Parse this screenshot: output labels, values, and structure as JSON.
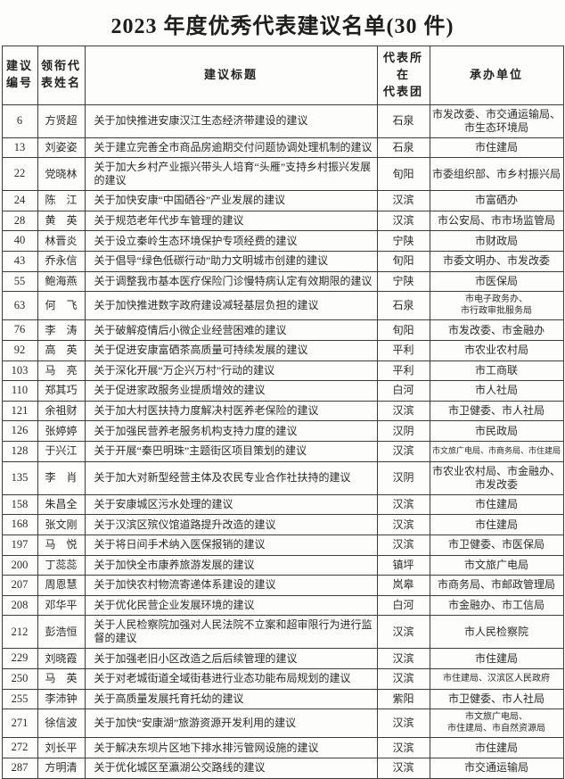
{
  "page": {
    "title": "2023 年度优秀代表建议名单(30 件)"
  },
  "table": {
    "headers": [
      "建议\n编号",
      "领衔代\n表姓名",
      "建议标题",
      "代表所在\n代表团",
      "承办单位"
    ],
    "rows": [
      {
        "no": "6",
        "name": "方贤超",
        "title": "关于加快推进安康汉江生态经济带建设的建议",
        "delegation": "石泉",
        "unit": "市发改委、市交通运输局、\n市生态环境局"
      },
      {
        "no": "13",
        "name": "刘姿姿",
        "title": "关于建立完善全市商品房逾期交付问题协调处理机制的建议",
        "delegation": "石泉",
        "unit": "市住建局"
      },
      {
        "no": "22",
        "name": "党晓林",
        "title": "关于加大乡村产业振兴带头人培育“头雁”支持乡村振兴发展的建议",
        "delegation": "旬阳",
        "unit": "市委组织部、市乡村振兴局"
      },
      {
        "no": "24",
        "name": "陈　江",
        "title": "关于加快安康“中国硒谷”产业发展的建议",
        "delegation": "汉滨",
        "unit": "市富硒办"
      },
      {
        "no": "28",
        "name": "黄　英",
        "title": "关于规范老年代步车管理的建议",
        "delegation": "汉滨",
        "unit": "市公安局、市市场监管局"
      },
      {
        "no": "40",
        "name": "林晋炎",
        "title": "关于设立秦岭生态环境保护专项经费的建议",
        "delegation": "宁陕",
        "unit": "市财政局"
      },
      {
        "no": "43",
        "name": "乔永信",
        "title": "关于倡导“绿色低碳行动”助力文明城市创建的建议",
        "delegation": "旬阳",
        "unit": "市委文明办、市发改委"
      },
      {
        "no": "55",
        "name": "鲍海燕",
        "title": "关于调整我市基本医疗保险门诊慢特病认定有效期限的建议",
        "delegation": "宁陕",
        "unit": "市医保局"
      },
      {
        "no": "63",
        "name": "何　飞",
        "title": "关于加快推进数字政府建设减轻基层负担的建议",
        "delegation": "石泉",
        "unit": "市电子政务办、\n市行政审批服务局",
        "unit_size": "small"
      },
      {
        "no": "76",
        "name": "李　涛",
        "title": "关于破解疫情后小微企业经营困难的建议",
        "delegation": "旬阳",
        "unit": "市发改委、市金融办"
      },
      {
        "no": "92",
        "name": "高　英",
        "title": "关于促进安康富硒茶高质量可持续发展的建议",
        "delegation": "平利",
        "unit": "市农业农村局"
      },
      {
        "no": "103",
        "name": "马　亮",
        "title": "关于深化开展“万企兴万村”行动的建议",
        "delegation": "平利",
        "unit": "市工商联"
      },
      {
        "no": "110",
        "name": "郑其巧",
        "title": "关于促进家政服务业提质增效的建议",
        "delegation": "白河",
        "unit": "市人社局"
      },
      {
        "no": "121",
        "name": "余祖财",
        "title": "关于加大村医扶持力度解决村医养老保险的建议",
        "delegation": "汉滨",
        "unit": "市卫健委、市人社局"
      },
      {
        "no": "126",
        "name": "张婷婷",
        "title": "关于加强民营养老服务机构支持力度的建议",
        "delegation": "汉阴",
        "unit": "市民政局"
      },
      {
        "no": "128",
        "name": "于兴江",
        "title": "关于开展“秦巴明珠”主题街区项目策划的建议",
        "delegation": "汉滨",
        "unit": "市文旅广电局、市商务局、市住建局",
        "unit_size": "xsmall"
      },
      {
        "no": "135",
        "name": "李　肖",
        "title": "关于加大对新型经营主体及农民专业合作社扶持的建议",
        "delegation": "汉阴",
        "unit": "市农业农村局、市金融办、\n市发改委"
      },
      {
        "no": "158",
        "name": "朱昌全",
        "title": "关于安康城区污水处理的建议",
        "delegation": "汉滨",
        "unit": "市住建局"
      },
      {
        "no": "168",
        "name": "张文刚",
        "title": "关于汉滨区殡仪馆道路提升改造的建议",
        "delegation": "汉滨",
        "unit": "市住建局"
      },
      {
        "no": "197",
        "name": "马　悦",
        "title": "关于将日间手术纳入医保报销的建议",
        "delegation": "汉滨",
        "unit": "市卫健委、市医保局"
      },
      {
        "no": "200",
        "name": "丁蕊蕊",
        "title": "关于加快全市康养旅游发展的建议",
        "delegation": "镇坪",
        "unit": "市文旅广电局"
      },
      {
        "no": "207",
        "name": "周恩慧",
        "title": "关于加快农村物流寄递体系建设的建议",
        "delegation": "岚皋",
        "unit": "市商务局、市邮政管理局"
      },
      {
        "no": "208",
        "name": "邓华平",
        "title": "关于优化民营企业发展环境的建议",
        "delegation": "白河",
        "unit": "市金融办、市工信局"
      },
      {
        "no": "212",
        "name": "彭浩恒",
        "title": "关于人民检察院加强对人民法院不立案和超审限行为进行监督的建议",
        "delegation": "汉滨",
        "unit": "市人民检察院"
      },
      {
        "no": "229",
        "name": "刘晓霞",
        "title": "关于加强老旧小区改造之后后续管理的建议",
        "delegation": "汉滨",
        "unit": "市住建局"
      },
      {
        "no": "250",
        "name": "马　英",
        "title": "关于对老城街道全域街巷进行业态功能布局规划的建议",
        "delegation": "汉滨",
        "unit": "市住建局、汉滨区人民政府",
        "unit_size": "small"
      },
      {
        "no": "255",
        "name": "李沛钟",
        "title": "关于高质量发展托育托幼的建议",
        "delegation": "紫阳",
        "unit": "市卫健委、市人社局"
      },
      {
        "no": "271",
        "name": "徐信波",
        "title": "关于加快“安康湖”旅游资源开发利用的建议",
        "delegation": "汉滨",
        "unit": "市文旅广电局、\n市住建局、市自然资源局",
        "unit_size": "small"
      },
      {
        "no": "272",
        "name": "刘长平",
        "title": "关于解决东坝片区地下排水排污管网设施的建议",
        "delegation": "汉滨",
        "unit": "市住建局"
      },
      {
        "no": "287",
        "name": "方明清",
        "title": "关于优化城区至瀛湖公交路线的建议",
        "delegation": "汉滨",
        "unit": "市交通运输局"
      }
    ]
  }
}
